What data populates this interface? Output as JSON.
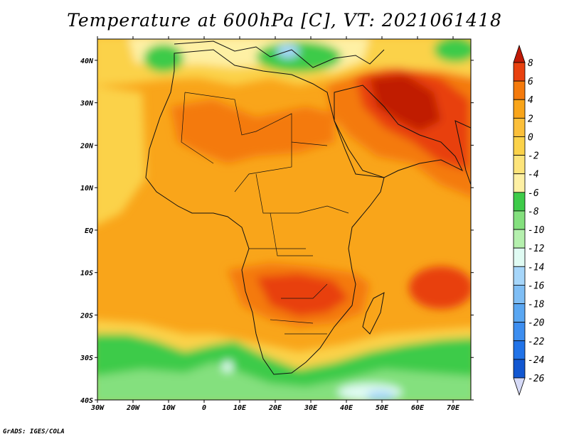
{
  "title": "Temperature at 600hPa [C], VT: 2021061418",
  "credit": "GrADS: IGES/COLA",
  "colors": {
    "deep_red": "#c01a06",
    "red": "#e8410f",
    "dark_orange": "#f47a0c",
    "orange": "#f9a51a",
    "light_orange": "#fbd24a",
    "pale_yellow": "#fef0a4",
    "green_dark": "#3ecb49",
    "green": "#84e07e",
    "green_pale": "#b5f0ae",
    "cyan_pale": "#e0fbf3",
    "blue_pale": "#a6d6fa"
  },
  "chart_data": {
    "type": "heatmap",
    "title": "Temperature at 600hPa [C], VT: 2021061418",
    "xlim": [
      -30,
      75
    ],
    "ylim": [
      -40,
      45
    ],
    "x_ticks": [
      {
        "value": -30,
        "label": "30W"
      },
      {
        "value": -20,
        "label": "20W"
      },
      {
        "value": -10,
        "label": "10W"
      },
      {
        "value": 0,
        "label": "0"
      },
      {
        "value": 10,
        "label": "10E"
      },
      {
        "value": 20,
        "label": "20E"
      },
      {
        "value": 30,
        "label": "30E"
      },
      {
        "value": 40,
        "label": "40E"
      },
      {
        "value": 50,
        "label": "50E"
      },
      {
        "value": 60,
        "label": "60E"
      },
      {
        "value": 70,
        "label": "70E"
      }
    ],
    "y_ticks": [
      {
        "value": 40,
        "label": "40N"
      },
      {
        "value": 30,
        "label": "30N"
      },
      {
        "value": 20,
        "label": "20N"
      },
      {
        "value": 10,
        "label": "10N"
      },
      {
        "value": 0,
        "label": "EQ"
      },
      {
        "value": -10,
        "label": "10S"
      },
      {
        "value": -20,
        "label": "20S"
      },
      {
        "value": -30,
        "label": "30S"
      },
      {
        "value": -40,
        "label": "40S"
      }
    ],
    "colorbar": {
      "labels": [
        "8",
        "6",
        "4",
        "2",
        "0",
        "-2",
        "-4",
        "-6",
        "-8",
        "-10",
        "-12",
        "-14",
        "-16",
        "-18",
        "-20",
        "-22",
        "-24",
        "-26"
      ],
      "colors": [
        "#c01a06",
        "#e8410f",
        "#f47a0c",
        "#f9a51a",
        "#fbbf3a",
        "#fbd24a",
        "#fde47a",
        "#fef0a4",
        "#3ecb49",
        "#84e07e",
        "#b5f0ae",
        "#e0fbf3",
        "#a6d6fa",
        "#7fbef5",
        "#5aa7f2",
        "#3d8ef0",
        "#2173e8",
        "#1257d1",
        "#0a3aa0",
        "#061c6a"
      ]
    }
  }
}
